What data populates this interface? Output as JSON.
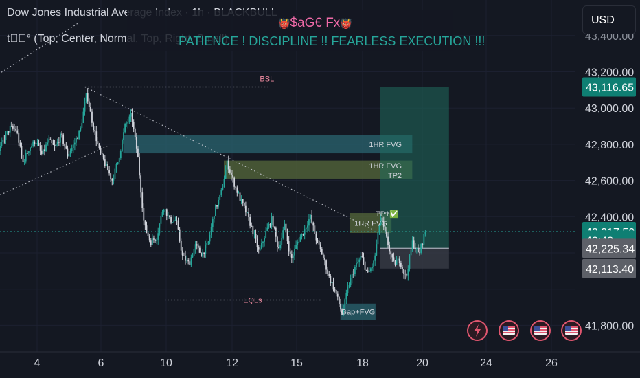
{
  "header": {
    "title": "Dow Jones Industrial Average Index · 1h · BLACKBULL",
    "indicator": "t⃞⃞° (Top, Center, Normal, Top, Right, Small)"
  },
  "banner": {
    "brand": "$aG€ Fx",
    "tagline": "PATIENCE !  DISCIPLINE !! FEARLESS EXECUTION !!!"
  },
  "currency_button": "USD",
  "colors": {
    "background": "#141822",
    "bull": "#26a69a",
    "bear": "#d1d4dc",
    "target_zone": "#1f6b5c",
    "stop_zone": "#3a3e48",
    "fvg_teal": "#2a6470",
    "fvg_olive": "#55683b",
    "label_pink": "#f08ba0"
  },
  "toolbar_icons": [
    "lightning-icon",
    "us-flag-icon",
    "us-flag-icon",
    "us-flag-icon"
  ],
  "chart_data": {
    "type": "candlestick",
    "symbol": "Dow Jones Industrial Average Index",
    "timeframe": "1h",
    "x_ticks": [
      "4",
      "6",
      "10",
      "12",
      "15",
      "18",
      "20",
      "24",
      "26"
    ],
    "y_ticks": [
      "41,800.00",
      "42,400.00",
      "42,600.00",
      "42,800.00",
      "43,000.00",
      "43,200.00"
    ],
    "ylim": [
      41720,
      43430
    ],
    "price_scale_labels": [
      {
        "text": "43,116.65",
        "value": 43116.65,
        "style": "teal"
      },
      {
        "text": "42,317.50",
        "value": 42317.5,
        "style": "teal"
      },
      {
        "text": "42:42",
        "value": 42270,
        "style": "teal"
      },
      {
        "text": "42,225.34",
        "value": 42225.34,
        "style": "grey"
      },
      {
        "text": "42,113.40",
        "value": 42113.4,
        "style": "grey"
      }
    ],
    "current_price": 42317.5,
    "price_path": [
      [
        -8.0,
        42330
      ],
      [
        -7.8,
        42300
      ],
      [
        -7.6,
        42250
      ],
      [
        -7.4,
        42180
      ],
      [
        -7.2,
        42110
      ],
      [
        -7.0,
        42330
      ],
      [
        -6.8,
        42450
      ],
      [
        -6.6,
        42520
      ],
      [
        -6.4,
        42560
      ],
      [
        -6.2,
        42600
      ],
      [
        -6.0,
        42540
      ],
      [
        -5.8,
        42560
      ],
      [
        -5.6,
        42620
      ],
      [
        -5.4,
        42570
      ],
      [
        -5.2,
        42480
      ],
      [
        -5.0,
        42430
      ],
      [
        -4.8,
        42440
      ],
      [
        -4.6,
        42460
      ],
      [
        -4.4,
        42500
      ],
      [
        -4.2,
        42450
      ],
      [
        -4.0,
        42560
      ],
      [
        -3.8,
        42420
      ],
      [
        -3.6,
        42300
      ],
      [
        -3.4,
        42400
      ],
      [
        -3.2,
        42480
      ],
      [
        -3.0,
        42450
      ],
      [
        -2.8,
        42480
      ],
      [
        -2.6,
        42430
      ],
      [
        -2.4,
        42540
      ],
      [
        -2.2,
        42810
      ],
      [
        -2.0,
        42800
      ],
      [
        -1.8,
        42720
      ],
      [
        -1.6,
        42840
      ],
      [
        -1.4,
        42760
      ],
      [
        -1.2,
        42740
      ],
      [
        -1.0,
        42830
      ],
      [
        -0.8,
        42890
      ],
      [
        -0.6,
        42880
      ],
      [
        -0.4,
        42700
      ],
      [
        -0.2,
        42780
      ],
      [
        0.0,
        42820
      ],
      [
        0.2,
        42740
      ],
      [
        0.4,
        42820
      ],
      [
        0.6,
        42780
      ],
      [
        0.8,
        42850
      ],
      [
        1.0,
        42740
      ],
      [
        1.2,
        42800
      ],
      [
        1.4,
        42880
      ],
      [
        1.6,
        43080
      ],
      [
        1.8,
        42900
      ],
      [
        2.0,
        42760
      ],
      [
        2.2,
        42680
      ],
      [
        2.4,
        42600
      ],
      [
        2.6,
        42720
      ],
      [
        2.8,
        42900
      ],
      [
        3.0,
        42960
      ],
      [
        3.2,
        42730
      ],
      [
        3.4,
        42350
      ],
      [
        3.6,
        42260
      ],
      [
        3.8,
        42290
      ],
      [
        4.0,
        42460
      ],
      [
        4.2,
        42380
      ],
      [
        4.4,
        42380
      ],
      [
        4.6,
        42180
      ],
      [
        4.8,
        42140
      ],
      [
        5.0,
        42240
      ],
      [
        5.2,
        42190
      ],
      [
        5.4,
        42250
      ],
      [
        5.6,
        42430
      ],
      [
        5.8,
        42520
      ],
      [
        6.0,
        42700
      ],
      [
        6.2,
        42590
      ],
      [
        6.4,
        42500
      ],
      [
        6.6,
        42420
      ],
      [
        6.8,
        42320
      ],
      [
        7.0,
        42200
      ],
      [
        7.2,
        42310
      ],
      [
        7.4,
        42390
      ],
      [
        7.6,
        42220
      ],
      [
        7.8,
        42350
      ],
      [
        8.0,
        42160
      ],
      [
        8.2,
        42260
      ],
      [
        8.4,
        42320
      ],
      [
        8.6,
        42400
      ],
      [
        8.8,
        42270
      ],
      [
        9.0,
        42180
      ],
      [
        9.2,
        42060
      ],
      [
        9.4,
        41980
      ],
      [
        9.6,
        41860
      ],
      [
        9.8,
        42020
      ],
      [
        10.0,
        42120
      ],
      [
        10.2,
        42180
      ],
      [
        10.4,
        42080
      ],
      [
        10.6,
        42150
      ],
      [
        10.8,
        42400
      ],
      [
        11.0,
        42270
      ],
      [
        11.2,
        42140
      ],
      [
        11.4,
        42160
      ],
      [
        11.6,
        42060
      ],
      [
        11.8,
        42260
      ],
      [
        12.0,
        42190
      ],
      [
        12.2,
        42317.5
      ]
    ],
    "key_levels": [
      {
        "label": "BSL",
        "price": 43116.65,
        "x_from": 1.5,
        "x_to": 7.25,
        "style": "dotted"
      },
      {
        "label": "EQLs",
        "price": 41940,
        "x_from": 4.0,
        "x_to": 8.9,
        "style": "dotted"
      },
      {
        "label": "TP1✅",
        "price": 42420,
        "x_from": 10.7,
        "x_to": 11.05,
        "style": "dotted"
      }
    ],
    "zones": [
      {
        "label": "1HR FVG",
        "from": 42750,
        "to": 42850,
        "x_from": 2.7,
        "x_to": 11.75,
        "color": "fvg_teal"
      },
      {
        "label": "1HR FVG\nTP2",
        "from": 42610,
        "to": 42710,
        "x_from": 5.85,
        "x_to": 11.75,
        "color": "fvg_olive"
      },
      {
        "label": "1HR FVG",
        "from": 42310,
        "to": 42420,
        "x_from": 9.8,
        "x_to": 11.1,
        "color": "fvg_olive"
      },
      {
        "label": "Gap+FVG",
        "from": 41830,
        "to": 41920,
        "x_from": 9.5,
        "x_to": 10.6,
        "color": "fvg_teal"
      }
    ],
    "position": {
      "entry": 42225.34,
      "take_profit": 43116.65,
      "stop": 42113.4,
      "x_from": 10.75,
      "x_to": 12.9
    },
    "channel_lines": [
      {
        "from": [
          -8.0,
          42420
        ],
        "to": [
          1.3,
          43470
        ]
      },
      {
        "from": [
          -8.0,
          41970
        ],
        "to": [
          2.2,
          42790
        ]
      },
      {
        "from": [
          1.5,
          43116.65
        ],
        "to": [
          10.5,
          42330
        ]
      }
    ]
  }
}
